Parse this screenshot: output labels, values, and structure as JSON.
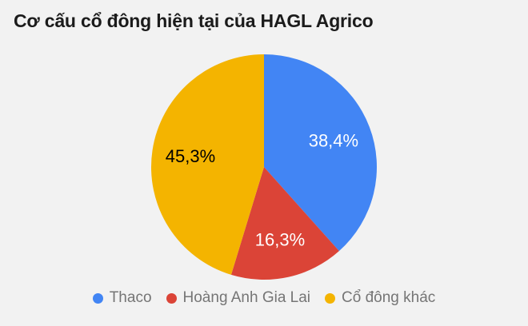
{
  "page": {
    "background_color": "#f2f2f2"
  },
  "title": "Cơ cấu cổ đông hiện tại của HAGL Agrico",
  "chart_data": {
    "type": "pie",
    "title": "Cơ cấu cổ đông hiện tại của HAGL Agrico",
    "start_angle_deg": 0,
    "direction": "clockwise",
    "legend_position": "bottom",
    "value_unit": "%",
    "slices": [
      {
        "label": "Thaco",
        "value": 38.4,
        "display_value": "38,4%",
        "color": "#4285f4",
        "value_label_color": "#ffffff"
      },
      {
        "label": "Hoàng Anh Gia Lai",
        "value": 16.3,
        "display_value": "16,3%",
        "color": "#db4437",
        "value_label_color": "#ffffff"
      },
      {
        "label": "Cổ đông khác",
        "value": 45.3,
        "display_value": "45,3%",
        "color": "#f4b400",
        "value_label_color": "#000000"
      }
    ]
  }
}
